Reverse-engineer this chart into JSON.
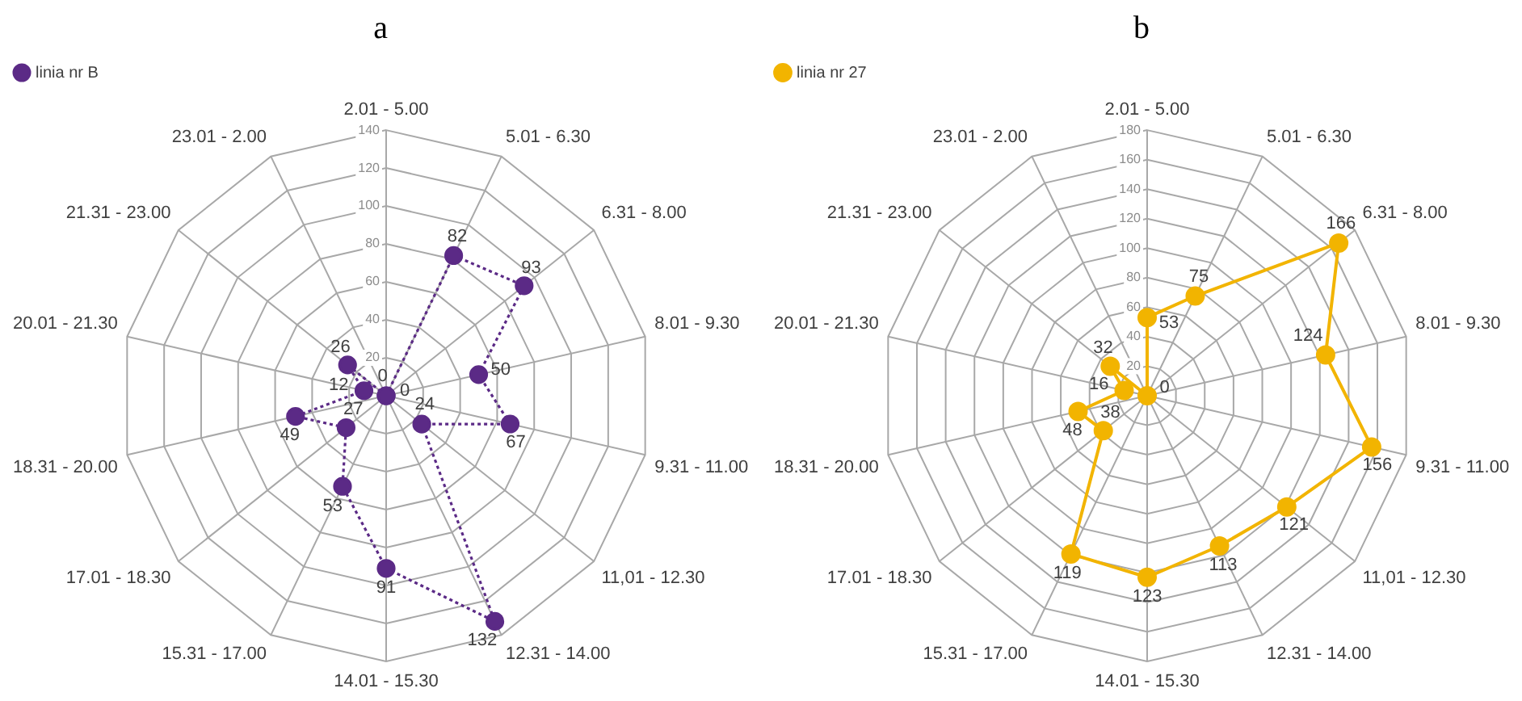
{
  "chart_data": [
    {
      "type": "radar",
      "title": "a",
      "categories": [
        "2.01 - 5.00",
        "5.01 - 6.30",
        "6.31 - 8.00",
        "8.01 - 9.30",
        "9.31 - 11.00",
        "11,01 - 12.30",
        "12.31 - 14.00",
        "14.01 - 15.30",
        "15.31 - 17.00",
        "17.01 - 18.30",
        "18.31 - 20.00",
        "20.01 - 21.30",
        "21.31 - 23.00",
        "23.01 - 2.00"
      ],
      "series": [
        {
          "name": "linia nr B",
          "color": "#5b2a86",
          "values": [
            0,
            82,
            93,
            50,
            67,
            24,
            132,
            91,
            53,
            27,
            49,
            12,
            26,
            0
          ]
        }
      ],
      "ylim": [
        0,
        140
      ],
      "yticks": [
        20,
        40,
        60,
        80,
        100,
        120,
        140
      ],
      "grid": true,
      "legend": "top left",
      "marker": "circle",
      "line_style": "dotted",
      "data_labels": true
    },
    {
      "type": "radar",
      "title": "b",
      "categories": [
        "2.01 - 5.00",
        "5.01 - 6.30",
        "6.31 - 8.00",
        "8.01 - 9.30",
        "9.31 - 11.00",
        "11,01 - 12.30",
        "12.31 - 14.00",
        "14.01 - 15.30",
        "15.31 - 17.00",
        "17.01 - 18.30",
        "18.31 - 20.00",
        "20.01 - 21.30",
        "21.31 - 23.00",
        "23.01 - 2.00"
      ],
      "series": [
        {
          "name": "linia nr 27",
          "color": "#f2b400",
          "values": [
            53,
            75,
            166,
            124,
            156,
            121,
            113,
            123,
            119,
            38,
            48,
            16,
            32,
            0
          ]
        }
      ],
      "ylim": [
        0,
        180
      ],
      "yticks": [
        20,
        40,
        60,
        80,
        100,
        120,
        140,
        160,
        180
      ],
      "grid": true,
      "legend": "top left",
      "marker": "circle",
      "line_style": "solid",
      "data_labels": true
    }
  ]
}
